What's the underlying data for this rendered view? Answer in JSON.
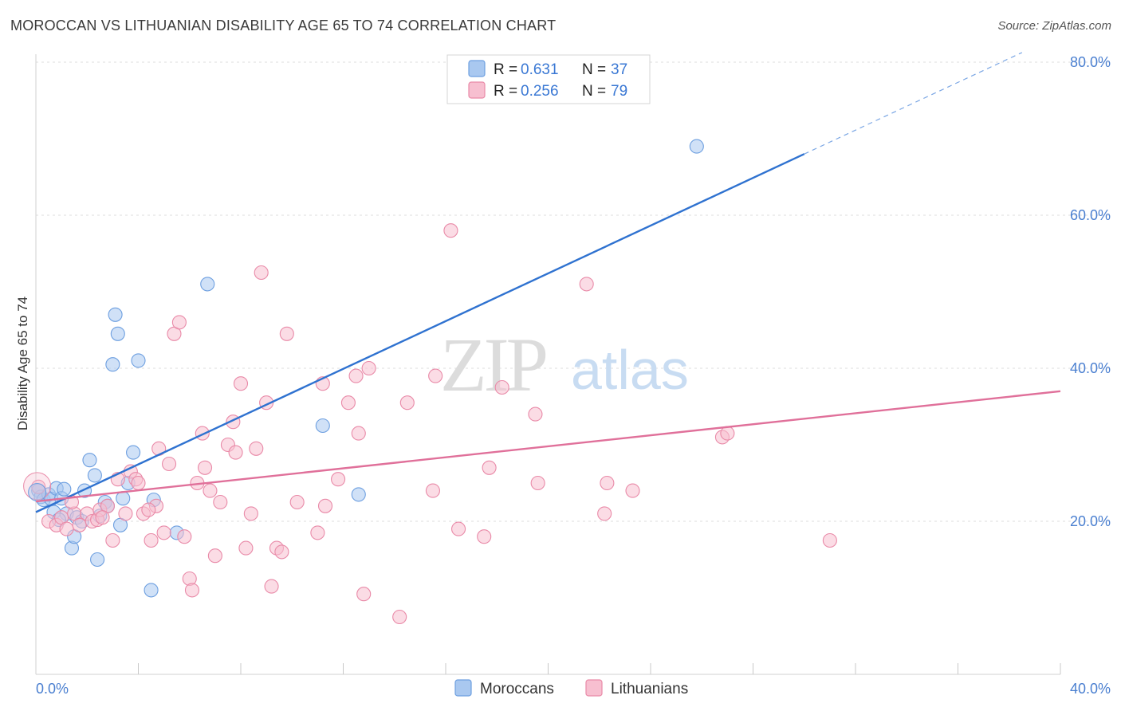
{
  "header": {
    "title": "MOROCCAN VS LITHUANIAN DISABILITY AGE 65 TO 74 CORRELATION CHART",
    "source": "Source: ZipAtlas.com"
  },
  "watermark": {
    "zip": "ZIP",
    "atlas": "atlas"
  },
  "legend": {
    "rows": [
      {
        "r_label": "R =",
        "r_value": "0.631",
        "n_label": "N =",
        "n_value": "37",
        "color": "#a9c8f0",
        "stroke": "#6d9fe0"
      },
      {
        "r_label": "R =",
        "r_value": "0.256",
        "n_label": "N =",
        "n_value": "79",
        "color": "#f7bfd0",
        "stroke": "#e98aa8"
      }
    ]
  },
  "bottom_legend": [
    {
      "label": "Moroccans",
      "color": "#a9c8f0",
      "stroke": "#6d9fe0"
    },
    {
      "label": "Lithuanians",
      "color": "#f7bfd0",
      "stroke": "#e98aa8"
    }
  ],
  "chart_data": {
    "type": "scatter",
    "title": "MOROCCAN VS LITHUANIAN DISABILITY AGE 65 TO 74 CORRELATION CHART",
    "xlabel": "",
    "ylabel": "Disability Age 65 to 74",
    "xlim": [
      0,
      40
    ],
    "ylim": [
      0,
      80
    ],
    "x_tick_labels": [
      "0.0%",
      "40.0%"
    ],
    "y_ticks": [
      20,
      40,
      60,
      80
    ],
    "y_tick_labels": [
      "20.0%",
      "40.0%",
      "60.0%",
      "80.0%"
    ],
    "grid": true,
    "legend_position": "top-center",
    "series": [
      {
        "name": "Moroccans",
        "color": "#6d9fe0",
        "fill": "#a9c8f0",
        "r": 0.631,
        "n": 37,
        "trend": {
          "x0": 0,
          "y0": 21.2,
          "x1": 30,
          "y1": 68.0,
          "dash_to_x": 38.5
        },
        "points": [
          [
            0.1,
            24.0
          ],
          [
            0.2,
            23.2
          ],
          [
            0.3,
            22.8
          ],
          [
            0.5,
            23.5
          ],
          [
            0.6,
            22.9
          ],
          [
            0.7,
            21.2
          ],
          [
            0.8,
            24.3
          ],
          [
            1.0,
            23.0
          ],
          [
            1.1,
            24.2
          ],
          [
            1.2,
            21.0
          ],
          [
            1.4,
            16.5
          ],
          [
            1.5,
            18.0
          ],
          [
            1.6,
            20.5
          ],
          [
            1.8,
            20.0
          ],
          [
            1.9,
            24.0
          ],
          [
            2.1,
            28.0
          ],
          [
            2.3,
            26.0
          ],
          [
            2.5,
            20.7
          ],
          [
            2.7,
            22.5
          ],
          [
            2.8,
            22.0
          ],
          [
            3.0,
            40.5
          ],
          [
            3.1,
            47.0
          ],
          [
            3.2,
            44.5
          ],
          [
            3.3,
            19.5
          ],
          [
            3.4,
            23.0
          ],
          [
            3.6,
            25.0
          ],
          [
            3.8,
            29.0
          ],
          [
            4.0,
            41.0
          ],
          [
            4.5,
            11.0
          ],
          [
            4.6,
            22.8
          ],
          [
            5.5,
            18.5
          ],
          [
            6.7,
            51.0
          ],
          [
            2.4,
            15.0
          ],
          [
            11.2,
            32.5
          ],
          [
            12.6,
            23.5
          ],
          [
            25.8,
            69.0
          ],
          [
            0.9,
            20.2
          ]
        ]
      },
      {
        "name": "Lithuanians",
        "color": "#e98aa8",
        "fill": "#f7bfd0",
        "r": 0.256,
        "n": 79,
        "trend": {
          "x0": 0,
          "y0": 22.6,
          "x1": 40,
          "y1": 37.0
        },
        "points": [
          [
            0.1,
            24.5
          ],
          [
            0.5,
            20.0
          ],
          [
            0.8,
            19.5
          ],
          [
            1.0,
            20.5
          ],
          [
            1.2,
            19.0
          ],
          [
            1.5,
            21.0
          ],
          [
            1.7,
            19.5
          ],
          [
            2.0,
            21.0
          ],
          [
            2.2,
            20.0
          ],
          [
            2.4,
            20.2
          ],
          [
            2.5,
            21.5
          ],
          [
            2.8,
            22.0
          ],
          [
            3.0,
            17.5
          ],
          [
            3.2,
            25.5
          ],
          [
            3.5,
            21.0
          ],
          [
            3.7,
            26.5
          ],
          [
            3.9,
            25.5
          ],
          [
            4.0,
            25.0
          ],
          [
            4.2,
            21.0
          ],
          [
            4.5,
            17.5
          ],
          [
            4.7,
            22.0
          ],
          [
            4.8,
            29.5
          ],
          [
            5.0,
            18.5
          ],
          [
            5.2,
            27.5
          ],
          [
            5.4,
            44.5
          ],
          [
            5.6,
            46.0
          ],
          [
            5.8,
            18.0
          ],
          [
            6.0,
            12.5
          ],
          [
            6.1,
            11.0
          ],
          [
            6.3,
            25.0
          ],
          [
            6.5,
            31.5
          ],
          [
            6.6,
            27.0
          ],
          [
            6.8,
            24.0
          ],
          [
            7.0,
            15.5
          ],
          [
            7.2,
            22.5
          ],
          [
            7.5,
            30.0
          ],
          [
            7.7,
            33.0
          ],
          [
            7.8,
            29.0
          ],
          [
            8.0,
            38.0
          ],
          [
            8.2,
            16.5
          ],
          [
            8.4,
            21.0
          ],
          [
            8.6,
            29.5
          ],
          [
            8.8,
            52.5
          ],
          [
            9.0,
            35.5
          ],
          [
            9.2,
            11.5
          ],
          [
            9.4,
            16.5
          ],
          [
            9.6,
            16.0
          ],
          [
            9.8,
            44.5
          ],
          [
            10.2,
            22.5
          ],
          [
            11.0,
            18.5
          ],
          [
            11.2,
            38.0
          ],
          [
            11.3,
            22.0
          ],
          [
            11.8,
            25.5
          ],
          [
            12.2,
            35.5
          ],
          [
            12.5,
            39.0
          ],
          [
            12.6,
            31.5
          ],
          [
            12.8,
            10.5
          ],
          [
            13.0,
            40.0
          ],
          [
            14.2,
            7.5
          ],
          [
            14.5,
            35.5
          ],
          [
            15.5,
            24.0
          ],
          [
            15.6,
            39.0
          ],
          [
            16.2,
            58.0
          ],
          [
            16.5,
            19.0
          ],
          [
            17.5,
            18.0
          ],
          [
            17.7,
            27.0
          ],
          [
            18.2,
            37.5
          ],
          [
            19.5,
            34.0
          ],
          [
            19.6,
            25.0
          ],
          [
            21.5,
            51.0
          ],
          [
            22.2,
            21.0
          ],
          [
            22.3,
            25.0
          ],
          [
            23.3,
            24.0
          ],
          [
            26.8,
            31.0
          ],
          [
            27.0,
            31.5
          ],
          [
            31.0,
            17.5
          ],
          [
            2.6,
            20.5
          ],
          [
            4.4,
            21.5
          ],
          [
            1.4,
            22.5
          ]
        ]
      }
    ]
  }
}
